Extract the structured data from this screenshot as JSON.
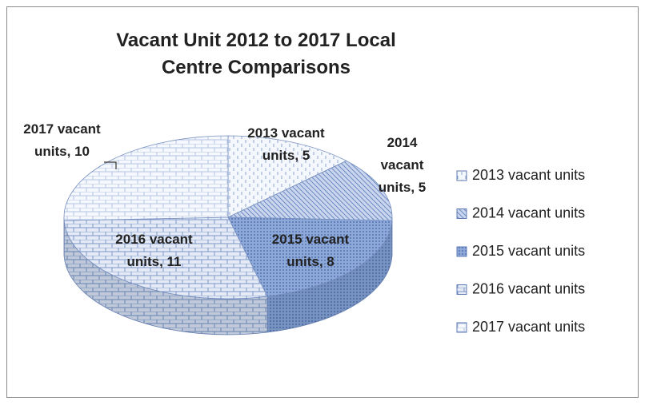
{
  "chart_data": {
    "type": "pie3d",
    "title": "Vacant Unit 2012 to 2017 Local Centre Comparisons",
    "categories": [
      "2013 vacant units",
      "2014 vacant units",
      "2015 vacant units",
      "2016 vacant units",
      "2017 vacant units"
    ],
    "values": [
      5,
      5,
      8,
      11,
      10
    ],
    "value_labels": [
      "2013 vacant units, 5",
      "2014 vacant units, 5",
      "2015 vacant units, 8",
      "2016 vacant units, 11",
      "2017 vacant units, 10"
    ],
    "colors": [
      "#e8eef8",
      "#b8c8e6",
      "#7f9fd0",
      "#d6e0f2",
      "#eef2fa"
    ],
    "legend": "right"
  }
}
